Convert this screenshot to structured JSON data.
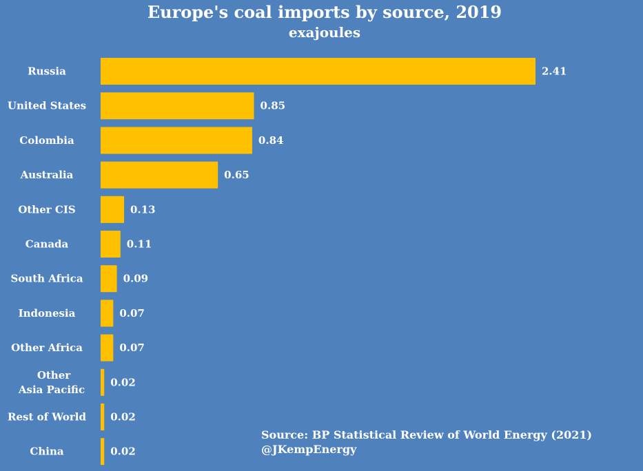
{
  "chart_data": {
    "type": "bar",
    "orientation": "horizontal",
    "title": "Europe's coal imports by source, 2019",
    "subtitle": "exajoules",
    "categories": [
      "Russia",
      "United States",
      "Colombia",
      "Australia",
      "Other CIS",
      "Canada",
      "South Africa",
      "Indonesia",
      "Other Africa",
      "Other Asia Pacific",
      "Rest of World",
      "China"
    ],
    "category_lines": [
      [
        "Russia"
      ],
      [
        "United States"
      ],
      [
        "Colombia"
      ],
      [
        "Australia"
      ],
      [
        "Other CIS"
      ],
      [
        "Canada"
      ],
      [
        "South Africa"
      ],
      [
        "Indonesia"
      ],
      [
        "Other Africa"
      ],
      [
        "Other",
        "Asia Pacific"
      ],
      [
        "Rest of World"
      ],
      [
        "China"
      ]
    ],
    "values": [
      2.41,
      0.85,
      0.84,
      0.65,
      0.13,
      0.11,
      0.09,
      0.07,
      0.07,
      0.02,
      0.02,
      0.02
    ],
    "value_labels": [
      "2.41",
      "0.85",
      "0.84",
      "0.65",
      "0.13",
      "0.11",
      "0.09",
      "0.07",
      "0.07",
      "0.02",
      "0.02",
      "0.02"
    ],
    "xlim": [
      0,
      2.41
    ],
    "bar_color": "#ffc000",
    "background_color": "#4f81bd"
  },
  "source": {
    "line1": "Source: BP Statistical Review of World Energy (2021)",
    "line2": "@JKempEnergy"
  }
}
